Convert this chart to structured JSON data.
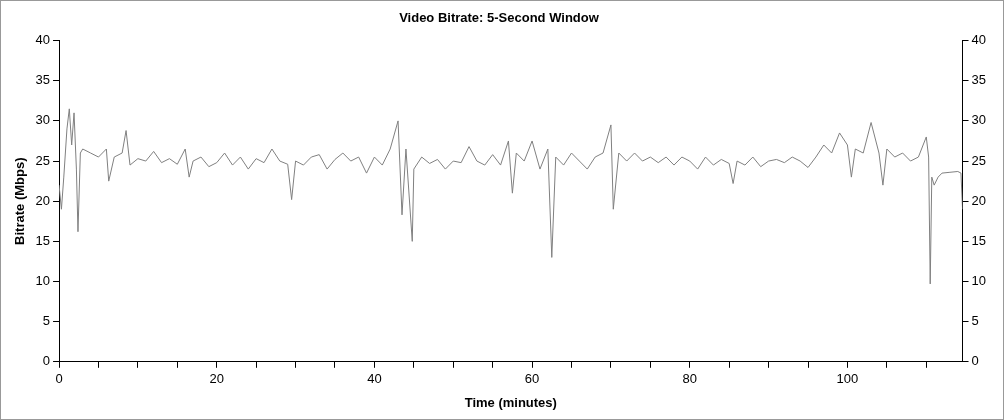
{
  "chart_data": {
    "type": "line",
    "title": "Video Bitrate: 5-Second Window",
    "xlabel": "Time (minutes)",
    "ylabel": "Bitrate (Mbps)",
    "series": [
      {
        "color": "#808080",
        "x": [
          0,
          0.3,
          0.6,
          1.0,
          1.3,
          1.6,
          1.9,
          2.2,
          2.4,
          2.7,
          3,
          4,
          5,
          6,
          6.3,
          7,
          8,
          8.5,
          9,
          10,
          11,
          12,
          13,
          14,
          15,
          16,
          16.5,
          17,
          18,
          19,
          20,
          21,
          22,
          23,
          24,
          25,
          26,
          27,
          28,
          29,
          29.5,
          30,
          31,
          32,
          33,
          34,
          35,
          36,
          37,
          38,
          39,
          40,
          41,
          42,
          43,
          43.5,
          44,
          44.8,
          45,
          46,
          47,
          48,
          49,
          50,
          51,
          52,
          53,
          54,
          55,
          56,
          57,
          57.5,
          58,
          59,
          60,
          61,
          62,
          62.5,
          63,
          64,
          65,
          66,
          67,
          68,
          69,
          70,
          70.3,
          71,
          72,
          73,
          74,
          75,
          76,
          77,
          78,
          79,
          80,
          81,
          82,
          83,
          84,
          85,
          85.5,
          86,
          87,
          88,
          89,
          90,
          91,
          92,
          93,
          94,
          95,
          96,
          97,
          98,
          99,
          100,
          100.5,
          101,
          102,
          103,
          104,
          104.5,
          105,
          106,
          107,
          108,
          109,
          110,
          110.3,
          110.5,
          110.7,
          111,
          111.5,
          112,
          113,
          114,
          114.4,
          114.6
        ],
        "values": [
          22,
          19,
          23,
          29,
          31.5,
          27,
          31,
          24,
          16.2,
          26,
          26.5,
          26,
          25.5,
          26.5,
          22.5,
          25.5,
          26,
          28.8,
          24.5,
          25.3,
          25,
          26.2,
          24.8,
          25.3,
          24.6,
          26.5,
          23,
          25,
          25.5,
          24.3,
          24.8,
          26,
          24.5,
          25.5,
          24,
          25.3,
          24.8,
          26.5,
          25,
          24.6,
          20.2,
          25,
          24.5,
          25.5,
          25.8,
          24,
          25.2,
          26,
          25,
          25.5,
          23.5,
          25.5,
          24.5,
          26.5,
          30,
          18.3,
          26.5,
          15,
          24,
          25.5,
          24.7,
          25.2,
          24,
          25,
          24.8,
          26.8,
          25,
          24.5,
          25.8,
          24.5,
          27.5,
          21,
          26,
          25,
          27.5,
          24,
          26.5,
          13,
          25.5,
          24.5,
          26,
          25,
          24,
          25.5,
          26,
          29.5,
          19,
          26,
          25,
          26,
          25,
          25.5,
          24.8,
          25.5,
          24.5,
          25.5,
          25,
          24,
          25.5,
          24.5,
          25.2,
          24.7,
          22.2,
          25,
          24.5,
          25.5,
          24.3,
          25,
          25.2,
          24.8,
          25.5,
          25,
          24.2,
          25.5,
          27,
          26,
          28.5,
          27,
          23,
          26.5,
          26,
          29.8,
          26,
          22,
          26.5,
          25.5,
          26,
          25,
          25.5,
          28,
          25.5,
          9.7,
          23,
          22,
          23,
          23.5,
          23.6,
          23.7,
          23.5,
          19
        ]
      }
    ],
    "xlim": [
      0,
      114.6
    ],
    "xticks": [
      0,
      {
        "value": 5,
        "label": null
      },
      {
        "value": 10,
        "label": null
      },
      {
        "value": 15,
        "label": null
      },
      20,
      {
        "value": 25,
        "label": null
      },
      {
        "value": 30,
        "label": null
      },
      {
        "value": 35,
        "label": null
      },
      40,
      {
        "value": 45,
        "label": null
      },
      {
        "value": 50,
        "label": null
      },
      {
        "value": 55,
        "label": null
      },
      60,
      {
        "value": 65,
        "label": null
      },
      {
        "value": 70,
        "label": null
      },
      {
        "value": 75,
        "label": null
      },
      80,
      {
        "value": 85,
        "label": null
      },
      {
        "value": 90,
        "label": null
      },
      {
        "value": 95,
        "label": null
      },
      100,
      {
        "value": 105,
        "label": null
      },
      {
        "value": 110,
        "label": null
      }
    ],
    "ylim": [
      0,
      40
    ],
    "yticks": [
      0,
      5,
      10,
      15,
      20,
      25,
      30,
      35,
      40
    ],
    "y2lim": [
      0,
      40
    ],
    "y2ticks": [
      0,
      5,
      10,
      15,
      20,
      25,
      30,
      35,
      40
    ],
    "grid": false,
    "legend": false,
    "marker": "none",
    "line_style": "solid"
  }
}
